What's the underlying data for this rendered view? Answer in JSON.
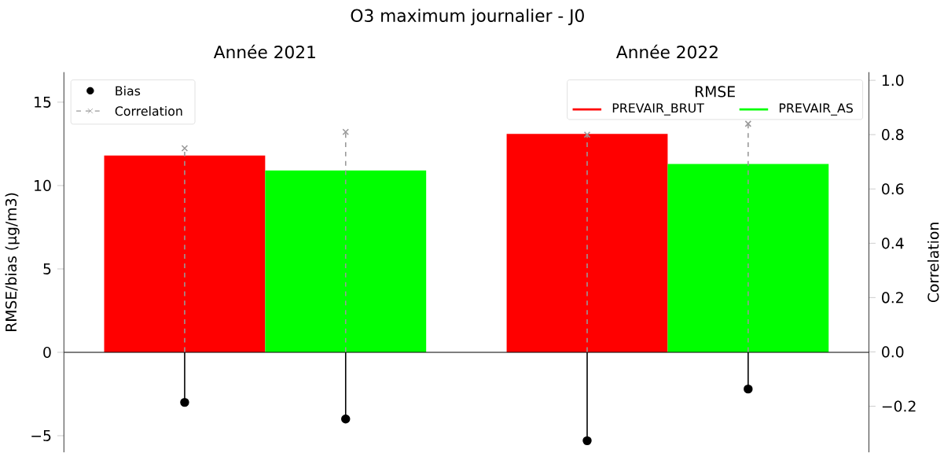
{
  "chart_data": {
    "type": "bar",
    "title": "O3 maximum journalier - J0",
    "categories": [
      "Année 2021",
      "Année 2022"
    ],
    "ylabel": "RMSE/bias (μg/m3)",
    "y2label": "Correlation",
    "legend_title": "RMSE",
    "legend": "top right",
    "series": [
      {
        "name": "PREVAIR_BRUT",
        "color": "#ff0000",
        "values": [
          11.8,
          13.1
        ]
      },
      {
        "name": "PREVAIR_AS",
        "color": "#00ff00",
        "values": [
          10.9,
          11.3
        ]
      },
      {
        "name": "Bias",
        "type": "lollipop",
        "color": "#000000",
        "marker": "circle",
        "values": [
          -3.0,
          -5.3
        ]
      },
      {
        "type": "lollipop",
        "color": "#000000",
        "marker": "circle",
        "values": [
          -4.0,
          -2.2
        ]
      },
      {
        "name": "Correlation",
        "type": "lollipop",
        "axis": "y2",
        "color": "#999999",
        "marker": "cross",
        "line_style": "dashed",
        "values": [
          0.75,
          0.8
        ]
      },
      {
        "type": "lollipop",
        "axis": "y2",
        "color": "#999999",
        "marker": "cross",
        "line_style": "dashed",
        "values": [
          0.81,
          0.84
        ]
      }
    ],
    "ylim": [
      -6,
      16.8
    ],
    "yticks": [
      {
        "value": -5,
        "label": "−5"
      },
      0,
      5,
      10,
      15
    ],
    "y2lim": [
      -0.37,
      1.03
    ],
    "y2ticks": [
      {
        "value": -0.2,
        "label": "−0.2"
      },
      {
        "value": 0,
        "label": "0.0"
      },
      {
        "value": 0.2,
        "label": "0.2"
      },
      {
        "value": 0.4,
        "label": "0.4"
      },
      {
        "value": 0.6,
        "label": "0.6"
      },
      {
        "value": 0.8,
        "label": "0.8"
      },
      {
        "value": 1,
        "label": "1.0"
      }
    ],
    "ref_lines": [
      {
        "axis": "y",
        "value": 0,
        "color": "#000000"
      }
    ]
  }
}
